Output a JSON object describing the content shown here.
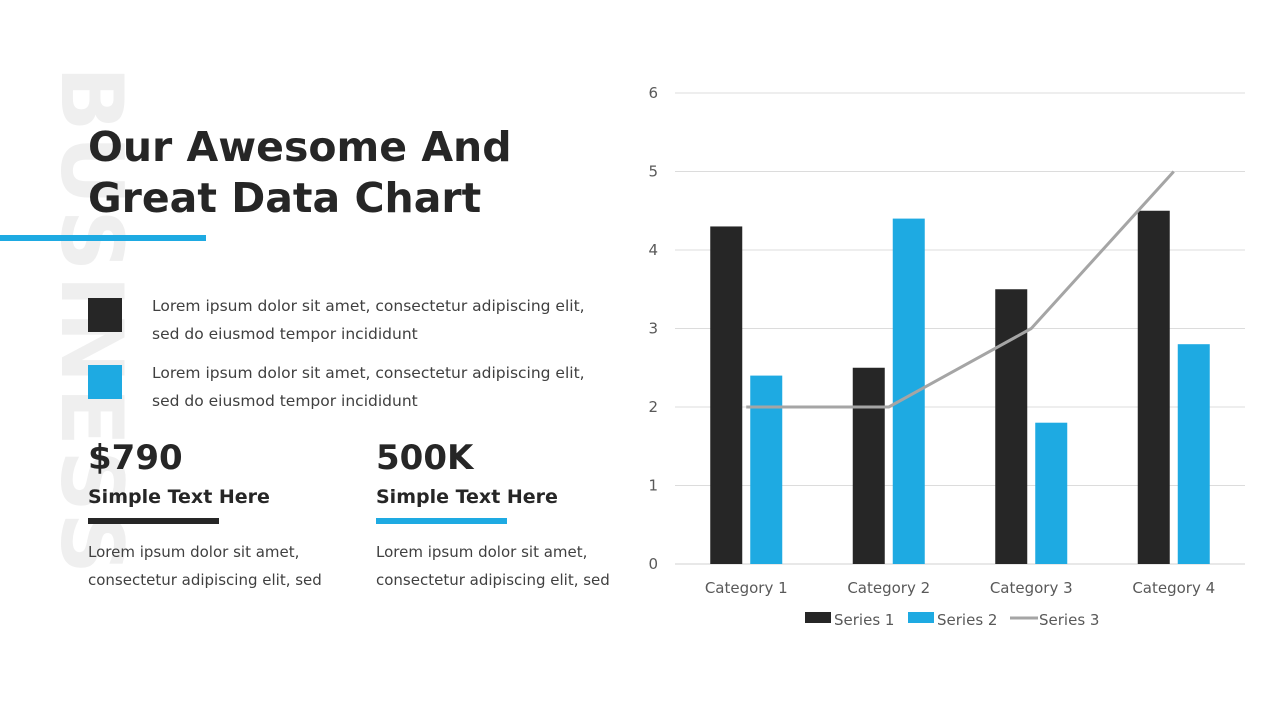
{
  "watermark": "BUSINESS",
  "title": {
    "line1": "Our Awesome And",
    "line2": "Great Data Chart"
  },
  "colors": {
    "dark": "#262626",
    "blue": "#1eaae2",
    "gray": "#a5a5a5"
  },
  "legend_items": [
    {
      "text": "Lorem ipsum dolor sit amet, consectetur adipiscing elit, sed do eiusmod tempor incididunt"
    },
    {
      "text": "Lorem ipsum dolor sit amet, consectetur adipiscing elit, sed do eiusmod tempor incididunt"
    }
  ],
  "stats": [
    {
      "value": "$790",
      "label": "Simple Text Here",
      "desc_line1": "Lorem ipsum dolor sit amet,",
      "desc_line2": "consectetur adipiscing elit, sed"
    },
    {
      "value": "500K",
      "label": "Simple Text Here",
      "desc_line1": "Lorem ipsum dolor sit amet,",
      "desc_line2": "consectetur adipiscing elit, sed"
    }
  ],
  "chart_data": {
    "type": "bar",
    "categories": [
      "Category 1",
      "Category 2",
      "Category 3",
      "Category 4"
    ],
    "series": [
      {
        "name": "Series 1",
        "type": "bar",
        "color": "#262626",
        "values": [
          4.3,
          2.5,
          3.5,
          4.5
        ]
      },
      {
        "name": "Series 2",
        "type": "bar",
        "color": "#1eaae2",
        "values": [
          2.4,
          4.4,
          1.8,
          2.8
        ]
      },
      {
        "name": "Series 3",
        "type": "line",
        "color": "#a5a5a5",
        "values": [
          2,
          2,
          3,
          5
        ]
      }
    ],
    "ylim": [
      0,
      6
    ],
    "yticks": [
      0,
      1,
      2,
      3,
      4,
      5,
      6
    ],
    "grid": true,
    "legend": "bottom"
  }
}
